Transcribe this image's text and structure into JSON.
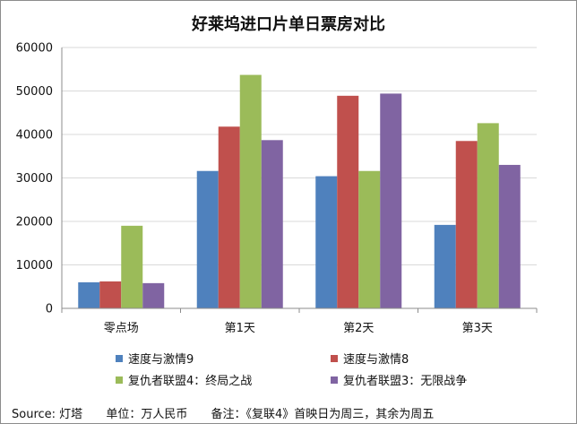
{
  "chart_data": {
    "type": "bar",
    "title": "好莱坞进口片单日票房对比",
    "categories": [
      "零点场",
      "第1天",
      "第2天",
      "第3天"
    ],
    "series": [
      {
        "name": "速度与激情9",
        "color": "#4f81bd",
        "values": [
          6000,
          31600,
          30400,
          19200
        ]
      },
      {
        "name": "速度与激情8",
        "color": "#c0504d",
        "values": [
          6200,
          41800,
          48900,
          38500
        ]
      },
      {
        "name": "复仇者联盟4：终局之战",
        "color": "#9bbb59",
        "values": [
          19000,
          53700,
          31600,
          42600
        ]
      },
      {
        "name": "复仇者联盟3：无限战争",
        "color": "#8064a2",
        "values": [
          5800,
          38700,
          49400,
          33000
        ]
      }
    ],
    "ylim": [
      0,
      60000
    ],
    "yticks": [
      "0",
      "10000",
      "20000",
      "30000",
      "40000",
      "50000",
      "60000"
    ],
    "grid": true,
    "legend_position": "bottom"
  },
  "footer": {
    "source": "Source:  灯塔",
    "unit": "单位：万人民币",
    "note": "备注：《复联4》首映日为周三，其余为周五"
  }
}
